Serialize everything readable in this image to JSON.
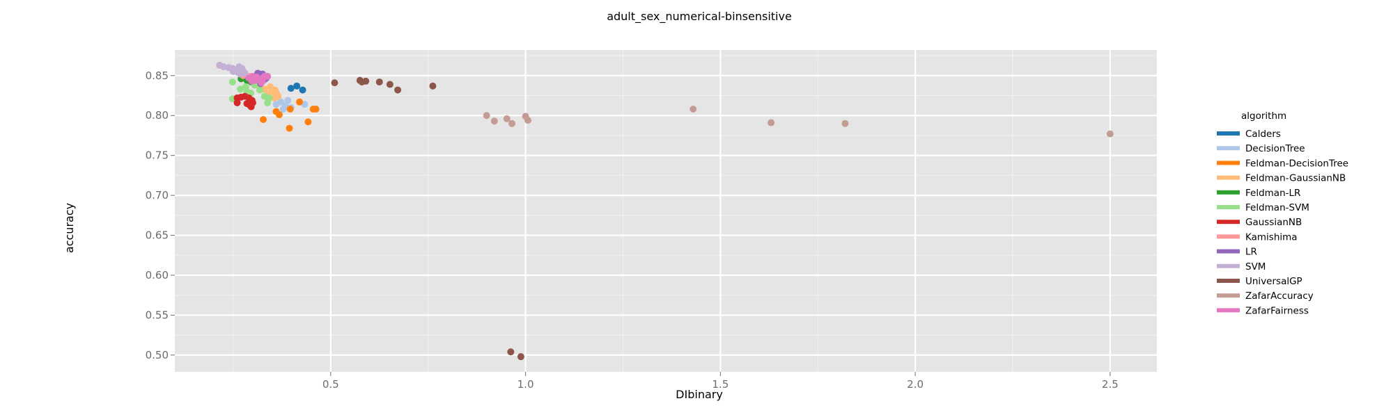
{
  "chart_data": {
    "type": "scatter",
    "title": "adult_sex_numerical-binsensitive",
    "xlabel": "DIbinary",
    "ylabel": "accuracy",
    "xlim": [
      0.1,
      2.62
    ],
    "ylim": [
      0.479,
      0.882
    ],
    "x_ticks": [
      0.5,
      1.0,
      1.5,
      2.0,
      2.5
    ],
    "x_tick_labels": [
      "0.5",
      "1.0",
      "1.5",
      "2.0",
      "2.5"
    ],
    "y_ticks": [
      0.5,
      0.55,
      0.6,
      0.65,
      0.7,
      0.75,
      0.8,
      0.85
    ],
    "y_tick_labels": [
      "0.50",
      "0.55",
      "0.60",
      "0.65",
      "0.70",
      "0.75",
      "0.80",
      "0.85"
    ],
    "grid": true,
    "legend": {
      "title": "algorithm",
      "placement": "right"
    },
    "series": [
      {
        "name": "Calders",
        "color": "#1f77b4",
        "points": [
          [
            0.398,
            0.834
          ],
          [
            0.413,
            0.837
          ],
          [
            0.428,
            0.832
          ]
        ]
      },
      {
        "name": "DecisionTree",
        "color": "#aec7e8",
        "points": [
          [
            0.36,
            0.814
          ],
          [
            0.372,
            0.817
          ],
          [
            0.384,
            0.812
          ],
          [
            0.378,
            0.808
          ],
          [
            0.398,
            0.81
          ],
          [
            0.433,
            0.814
          ],
          [
            0.39,
            0.819
          ]
        ]
      },
      {
        "name": "Feldman-DecisionTree",
        "color": "#ff7f0e",
        "points": [
          [
            0.327,
            0.795
          ],
          [
            0.36,
            0.805
          ],
          [
            0.368,
            0.801
          ],
          [
            0.396,
            0.808
          ],
          [
            0.394,
            0.784
          ],
          [
            0.42,
            0.817
          ],
          [
            0.442,
            0.792
          ],
          [
            0.455,
            0.808
          ],
          [
            0.462,
            0.808
          ]
        ]
      },
      {
        "name": "Feldman-GaussianNB",
        "color": "#ffbb78",
        "points": [
          [
            0.32,
            0.835
          ],
          [
            0.33,
            0.833
          ],
          [
            0.345,
            0.836
          ],
          [
            0.357,
            0.832
          ],
          [
            0.362,
            0.827
          ],
          [
            0.355,
            0.822
          ],
          [
            0.34,
            0.826
          ],
          [
            0.365,
            0.824
          ],
          [
            0.348,
            0.83
          ]
        ]
      },
      {
        "name": "Feldman-LR",
        "color": "#2ca02c",
        "points": [
          [
            0.27,
            0.846
          ],
          [
            0.285,
            0.844
          ],
          [
            0.296,
            0.842
          ],
          [
            0.278,
            0.848
          ],
          [
            0.29,
            0.847
          ]
        ]
      },
      {
        "name": "Feldman-SVM",
        "color": "#98df8a",
        "points": [
          [
            0.248,
            0.842
          ],
          [
            0.248,
            0.821
          ],
          [
            0.268,
            0.833
          ],
          [
            0.282,
            0.836
          ],
          [
            0.305,
            0.838
          ],
          [
            0.318,
            0.832
          ],
          [
            0.33,
            0.824
          ],
          [
            0.342,
            0.822
          ],
          [
            0.338,
            0.816
          ],
          [
            0.285,
            0.83
          ],
          [
            0.295,
            0.828
          ]
        ]
      },
      {
        "name": "GaussianNB",
        "color": "#d62728",
        "points": [
          [
            0.26,
            0.822
          ],
          [
            0.27,
            0.823
          ],
          [
            0.28,
            0.824
          ],
          [
            0.29,
            0.822
          ],
          [
            0.298,
            0.819
          ],
          [
            0.26,
            0.816
          ],
          [
            0.285,
            0.815
          ],
          [
            0.292,
            0.813
          ],
          [
            0.296,
            0.811
          ],
          [
            0.3,
            0.816
          ]
        ]
      },
      {
        "name": "Kamishima",
        "color": "#ff9896",
        "points": [
          [
            0.275,
            0.85
          ],
          [
            0.292,
            0.849
          ]
        ]
      },
      {
        "name": "LR",
        "color": "#9467bd",
        "points": [
          [
            0.313,
            0.853
          ],
          [
            0.322,
            0.849
          ],
          [
            0.33,
            0.845
          ],
          [
            0.32,
            0.84
          ],
          [
            0.335,
            0.847
          ],
          [
            0.325,
            0.852
          ]
        ]
      },
      {
        "name": "SVM",
        "color": "#c5b0d5",
        "points": [
          [
            0.215,
            0.863
          ],
          [
            0.225,
            0.861
          ],
          [
            0.238,
            0.86
          ],
          [
            0.248,
            0.859
          ],
          [
            0.256,
            0.857
          ],
          [
            0.265,
            0.861
          ],
          [
            0.272,
            0.859
          ],
          [
            0.262,
            0.854
          ],
          [
            0.25,
            0.855
          ],
          [
            0.275,
            0.856
          ],
          [
            0.268,
            0.852
          ],
          [
            0.28,
            0.853
          ]
        ]
      },
      {
        "name": "UniversalGP",
        "color": "#8c564b",
        "points": [
          [
            0.51,
            0.841
          ],
          [
            0.575,
            0.844
          ],
          [
            0.58,
            0.842
          ],
          [
            0.59,
            0.843
          ],
          [
            0.625,
            0.842
          ],
          [
            0.652,
            0.839
          ],
          [
            0.672,
            0.832
          ],
          [
            0.762,
            0.837
          ],
          [
            0.962,
            0.504
          ],
          [
            0.988,
            0.498
          ]
        ]
      },
      {
        "name": "ZafarAccuracy",
        "color": "#c49c94",
        "points": [
          [
            0.9,
            0.8
          ],
          [
            0.92,
            0.793
          ],
          [
            0.952,
            0.796
          ],
          [
            0.965,
            0.79
          ],
          [
            1.0,
            0.799
          ],
          [
            1.006,
            0.794
          ],
          [
            1.43,
            0.808
          ],
          [
            1.63,
            0.791
          ],
          [
            1.82,
            0.79
          ],
          [
            2.5,
            0.777
          ]
        ]
      },
      {
        "name": "ZafarFairness",
        "color": "#e377c2",
        "points": [
          [
            0.29,
            0.847
          ],
          [
            0.3,
            0.849
          ],
          [
            0.31,
            0.848
          ],
          [
            0.318,
            0.846
          ],
          [
            0.325,
            0.843
          ],
          [
            0.33,
            0.849
          ],
          [
            0.338,
            0.849
          ],
          [
            0.315,
            0.845
          ],
          [
            0.305,
            0.844
          ],
          [
            0.322,
            0.841
          ],
          [
            0.298,
            0.843
          ]
        ]
      }
    ]
  }
}
